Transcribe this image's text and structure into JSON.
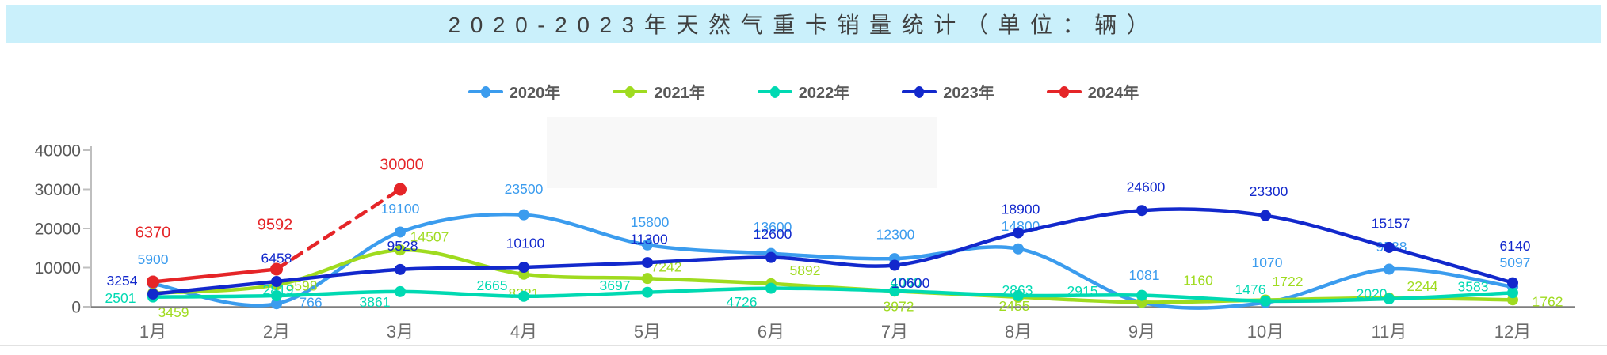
{
  "header": {
    "title": "2020-2023年天然气重卡销量统计（单位：辆）",
    "bg_color": "#CAF0FB",
    "text_color": "#3F3F3F"
  },
  "chart_data": {
    "type": "line",
    "title": "2020-2023年天然气重卡销量统计（单位：辆）",
    "categories": [
      "1月",
      "2月",
      "3月",
      "4月",
      "5月",
      "6月",
      "7月",
      "8月",
      "9月",
      "10月",
      "11月",
      "12月"
    ],
    "xlabel": "",
    "ylabel": "",
    "ylim": [
      0,
      40000
    ],
    "yticks": [
      0,
      10000,
      20000,
      30000,
      40000
    ],
    "grid": false,
    "legend_position": "top",
    "series": [
      {
        "name": "2020年",
        "color": "#3B9CEE",
        "values": [
          5900,
          766,
          19100,
          23500,
          15800,
          13600,
          12300,
          14800,
          1081,
          1070,
          9588,
          5097
        ],
        "label_offsets": [
          [
            0,
            -31
          ],
          [
            43,
            -2
          ],
          [
            0,
            -30
          ],
          [
            0,
            -33
          ],
          [
            3,
            -29
          ],
          [
            2,
            -34
          ],
          [
            1,
            -31
          ],
          [
            3,
            -29
          ],
          [
            3,
            -35
          ],
          [
            2,
            -51
          ],
          [
            3,
            -29
          ],
          [
            3,
            -31
          ]
        ]
      },
      {
        "name": "2021年",
        "color": "#9FDB1F",
        "values": [
          3459,
          5598,
          14507,
          8321,
          7242,
          5892,
          3972,
          2455,
          1160,
          1722,
          2244,
          1762
        ],
        "label_offsets": [
          [
            26,
            24
          ],
          [
            32,
            1
          ],
          [
            37,
            -17
          ],
          [
            0,
            24
          ],
          [
            24,
            -15
          ],
          [
            43,
            -17
          ],
          [
            5,
            19
          ],
          [
            -5,
            11
          ],
          [
            71,
            -28
          ],
          [
            28,
            -24
          ],
          [
            42,
            -15
          ],
          [
            44,
            2
          ]
        ]
      },
      {
        "name": "2022年",
        "color": "#00D9B2",
        "values": [
          2501,
          2819,
          3861,
          2665,
          3697,
          4726,
          4060,
          2863,
          2915,
          1476,
          2020,
          3583
        ],
        "label_offsets": [
          [
            -41,
            1
          ],
          [
            2,
            -8
          ],
          [
            -32,
            13
          ],
          [
            -40,
            -14
          ],
          [
            -41,
            -9
          ],
          [
            -37,
            17
          ],
          [
            14,
            -11
          ],
          [
            -1,
            -7
          ],
          [
            -75,
            -6
          ],
          [
            -19,
            -15
          ],
          [
            -22,
            -7
          ],
          [
            -50,
            -8
          ]
        ]
      },
      {
        "name": "2023年",
        "color": "#1228CC",
        "values": [
          3254,
          6458,
          9528,
          10100,
          11300,
          12600,
          10600,
          18900,
          24600,
          23300,
          15157,
          6140
        ],
        "label_offsets": [
          [
            -39,
            -17
          ],
          [
            0,
            -30
          ],
          [
            3,
            -30
          ],
          [
            2,
            -31
          ],
          [
            2,
            -30
          ],
          [
            2,
            -30
          ],
          [
            20,
            22
          ],
          [
            3,
            -30
          ],
          [
            5,
            -30
          ],
          [
            4,
            -31
          ],
          [
            2,
            -31
          ],
          [
            3,
            -47
          ]
        ]
      },
      {
        "name": "2024年",
        "color": "#E52528",
        "values": [
          6370,
          9592,
          30000,
          null,
          null,
          null,
          null,
          null,
          null,
          null,
          null,
          null
        ],
        "dashed_from": 1,
        "label_size": 20,
        "label_offsets": [
          [
            0,
            -63
          ],
          [
            -2,
            -57
          ],
          [
            2,
            -32
          ],
          null,
          null,
          null,
          null,
          null,
          null,
          null,
          null,
          null
        ]
      }
    ]
  }
}
